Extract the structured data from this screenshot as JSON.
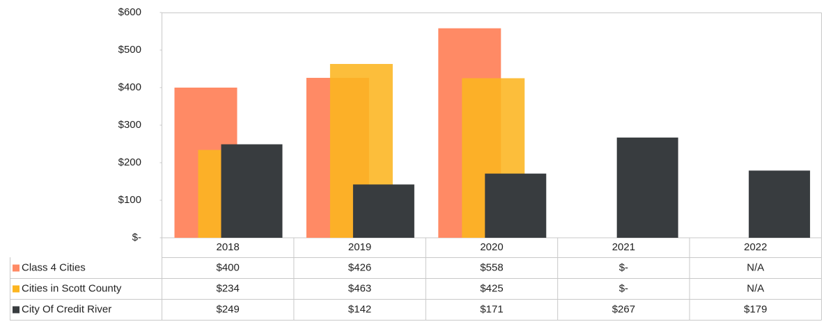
{
  "chart_data": {
    "type": "bar",
    "categories": [
      "2018",
      "2019",
      "2020",
      "2021",
      "2022"
    ],
    "series": [
      {
        "name": "Class 4 Cities",
        "color": "#ff8a65",
        "values": [
          400,
          426,
          558,
          0,
          null
        ],
        "value_labels": [
          "$400",
          "$426",
          "$558",
          "$-",
          "N/A"
        ]
      },
      {
        "name": "Cities in Scott County",
        "color": "#fcb520",
        "values": [
          234,
          463,
          425,
          0,
          null
        ],
        "value_labels": [
          "$234",
          "$463",
          "$425",
          "$-",
          "N/A"
        ]
      },
      {
        "name": "City Of Credit River",
        "color": "#383c3f",
        "values": [
          249,
          142,
          171,
          267,
          179
        ],
        "value_labels": [
          "$249",
          "$142",
          "$171",
          "$267",
          "$179"
        ]
      }
    ],
    "ylim": [
      0,
      600
    ],
    "yticks": [
      {
        "value": 0,
        "label": "$-"
      },
      {
        "value": 100,
        "label": "$100"
      },
      {
        "value": 200,
        "label": "$200"
      },
      {
        "value": 300,
        "label": "$300"
      },
      {
        "value": 400,
        "label": "$400"
      },
      {
        "value": 500,
        "label": "$500"
      },
      {
        "value": 600,
        "label": "$600"
      }
    ]
  }
}
